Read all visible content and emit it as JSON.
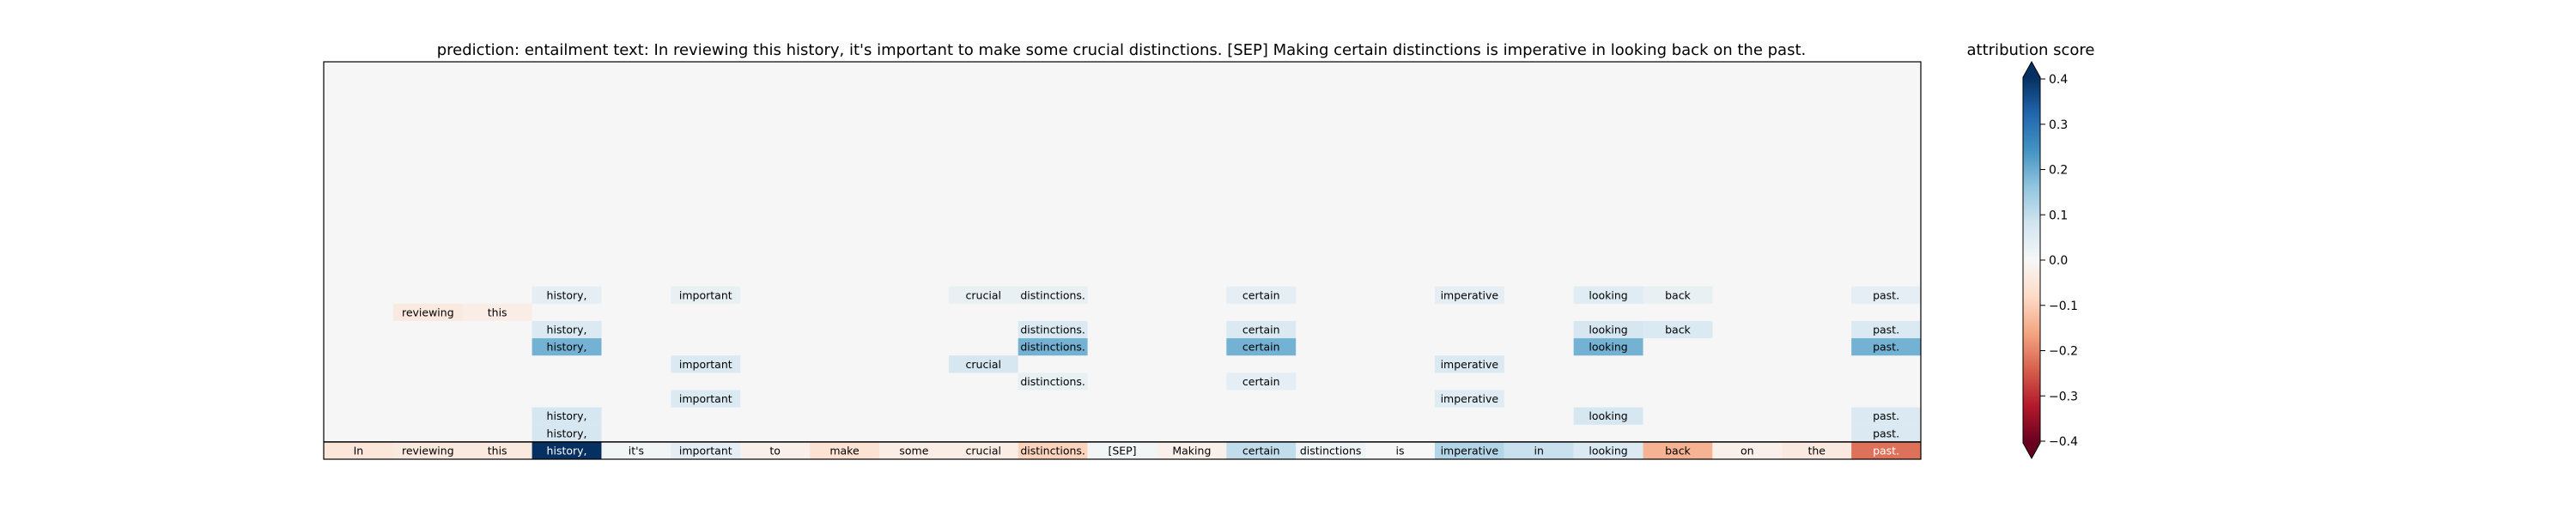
{
  "chart_data": {
    "type": "heatmap",
    "title": "prediction:  entailment     text:  In reviewing this history, it's important to make some crucial distinctions. [SEP] Making certain distinctions is imperative in looking back on the past.",
    "colorbar": {
      "label": "attribution score",
      "range": [
        -0.4,
        0.4
      ],
      "ticks": [
        "0.4",
        "0.3",
        "0.2",
        "0.1",
        "0.0",
        "−0.1",
        "−0.2",
        "−0.3",
        "−0.4"
      ],
      "tick_values": [
        0.4,
        0.3,
        0.2,
        0.1,
        0.0,
        -0.1,
        -0.2,
        -0.3,
        -0.4
      ],
      "colormap": "RdBu",
      "extend": "both"
    },
    "grid": {
      "rows": 22,
      "background_color": "#f5f6f5",
      "border_color": "#000000",
      "summary_separator": true
    },
    "tokens": [
      "In",
      "reviewing",
      "this",
      "history,",
      "it's",
      "important",
      "to",
      "make",
      "some",
      "crucial",
      "distinctions.",
      "[SEP]",
      "Making",
      "certain",
      "distinctions",
      "is",
      "imperative",
      "in",
      "looking",
      "back",
      "on",
      "the",
      "past."
    ],
    "cells": [
      {
        "row": 13,
        "col": 3,
        "label": "history,",
        "value": 0.04
      },
      {
        "row": 13,
        "col": 5,
        "label": "important",
        "value": 0.03
      },
      {
        "row": 13,
        "col": 9,
        "label": "crucial",
        "value": 0.03
      },
      {
        "row": 13,
        "col": 10,
        "label": "distinctions.",
        "value": 0.03
      },
      {
        "row": 13,
        "col": 13,
        "label": "certain",
        "value": 0.04
      },
      {
        "row": 13,
        "col": 16,
        "label": "imperative",
        "value": 0.04
      },
      {
        "row": 13,
        "col": 18,
        "label": "looking",
        "value": 0.05
      },
      {
        "row": 13,
        "col": 19,
        "label": "back",
        "value": 0.03
      },
      {
        "row": 13,
        "col": 22,
        "label": "past.",
        "value": 0.04
      },
      {
        "row": 14,
        "col": 1,
        "label": "reviewing",
        "value": -0.04
      },
      {
        "row": 14,
        "col": 2,
        "label": "this",
        "value": -0.03
      },
      {
        "row": 15,
        "col": 3,
        "label": "history,",
        "value": 0.06
      },
      {
        "row": 15,
        "col": 10,
        "label": "distinctions.",
        "value": 0.06
      },
      {
        "row": 15,
        "col": 13,
        "label": "certain",
        "value": 0.06
      },
      {
        "row": 15,
        "col": 18,
        "label": "looking",
        "value": 0.07
      },
      {
        "row": 15,
        "col": 19,
        "label": "back",
        "value": 0.06
      },
      {
        "row": 15,
        "col": 22,
        "label": "past.",
        "value": 0.06
      },
      {
        "row": 16,
        "col": 3,
        "label": "history,",
        "value": 0.19
      },
      {
        "row": 16,
        "col": 10,
        "label": "distinctions.",
        "value": 0.19
      },
      {
        "row": 16,
        "col": 13,
        "label": "certain",
        "value": 0.19
      },
      {
        "row": 16,
        "col": 18,
        "label": "looking",
        "value": 0.19
      },
      {
        "row": 16,
        "col": 22,
        "label": "past.",
        "value": 0.19
      },
      {
        "row": 17,
        "col": 5,
        "label": "important",
        "value": 0.06
      },
      {
        "row": 17,
        "col": 9,
        "label": "crucial",
        "value": 0.07
      },
      {
        "row": 17,
        "col": 16,
        "label": "imperative",
        "value": 0.06
      },
      {
        "row": 18,
        "col": 10,
        "label": "distinctions.",
        "value": 0.03
      },
      {
        "row": 18,
        "col": 13,
        "label": "certain",
        "value": 0.04
      },
      {
        "row": 19,
        "col": 5,
        "label": "important",
        "value": 0.06
      },
      {
        "row": 19,
        "col": 16,
        "label": "imperative",
        "value": 0.05
      },
      {
        "row": 20,
        "col": 3,
        "label": "history,",
        "value": 0.07
      },
      {
        "row": 20,
        "col": 18,
        "label": "looking",
        "value": 0.07
      },
      {
        "row": 20,
        "col": 22,
        "label": "past.",
        "value": 0.06
      },
      {
        "row": 21,
        "col": 3,
        "label": "history,",
        "value": 0.07
      },
      {
        "row": 21,
        "col": 22,
        "label": "past.",
        "value": 0.06
      }
    ],
    "summary_row": {
      "labels": [
        "In",
        "reviewing",
        "this",
        "history,",
        "it's",
        "important",
        "to",
        "make",
        "some",
        "crucial",
        "distinctions.",
        "[SEP]",
        "Making",
        "certain",
        "distinctions",
        "is",
        "imperative",
        "in",
        "looking",
        "back",
        "on",
        "the",
        "past."
      ],
      "values": [
        -0.05,
        -0.04,
        -0.04,
        0.42,
        0.01,
        0.04,
        -0.02,
        -0.06,
        -0.03,
        -0.03,
        -0.09,
        0.01,
        -0.02,
        0.1,
        0.02,
        0.0,
        0.12,
        0.09,
        0.06,
        -0.14,
        -0.02,
        -0.04,
        -0.22
      ]
    }
  }
}
